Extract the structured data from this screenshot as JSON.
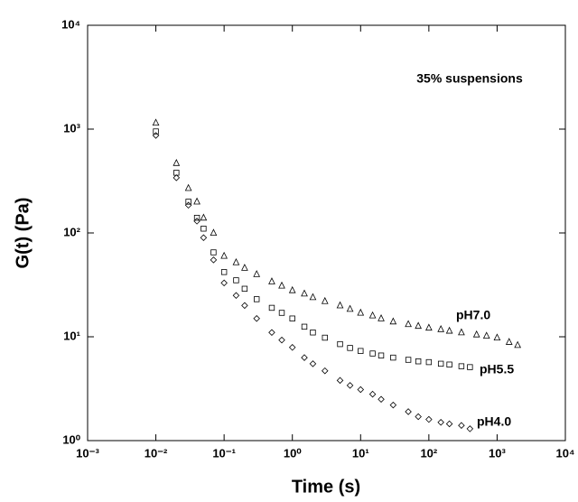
{
  "chart_data": {
    "type": "scatter",
    "x_label": "Time (s)",
    "y_label": "G(t) (Pa)",
    "annotation": "35% suspensions",
    "log_x": true,
    "log_y": true,
    "xlim": [
      0.001,
      10000
    ],
    "ylim": [
      1,
      10000
    ],
    "xticks": [
      {
        "value": 0.001,
        "label": "10⁻³"
      },
      {
        "value": 0.01,
        "label": "10⁻²"
      },
      {
        "value": 0.1,
        "label": "10⁻¹"
      },
      {
        "value": 1,
        "label": "10⁰"
      },
      {
        "value": 10,
        "label": "10¹"
      },
      {
        "value": 100,
        "label": "10²"
      },
      {
        "value": 1000,
        "label": "10³"
      },
      {
        "value": 10000,
        "label": "10⁴"
      }
    ],
    "yticks": [
      {
        "value": 1,
        "label": "10⁰"
      },
      {
        "value": 10,
        "label": "10¹"
      },
      {
        "value": 100,
        "label": "10²"
      },
      {
        "value": 1000,
        "label": "10³"
      },
      {
        "value": 10000,
        "label": "10⁴"
      }
    ],
    "series": [
      {
        "name": "pH7.0",
        "color": "#000000",
        "marker": "triangle",
        "x": [
          0.01,
          0.02,
          0.03,
          0.04,
          0.05,
          0.07,
          0.1,
          0.15,
          0.2,
          0.3,
          0.5,
          0.7,
          1,
          1.5,
          2,
          3,
          5,
          7,
          10,
          15,
          20,
          30,
          50,
          70,
          100,
          150,
          200,
          300,
          500,
          700,
          1000,
          1500,
          2000
        ],
        "values": [
          1150,
          470,
          270,
          200,
          140,
          100,
          60,
          52,
          46,
          40,
          34,
          31,
          28,
          26,
          24,
          22,
          20,
          18.5,
          17,
          16,
          15,
          14,
          13.2,
          12.7,
          12.2,
          11.8,
          11.4,
          11,
          10.5,
          10.2,
          9.8,
          8.9,
          8.3
        ]
      },
      {
        "name": "pH5.5",
        "color": "#000000",
        "marker": "square",
        "x": [
          0.01,
          0.02,
          0.03,
          0.04,
          0.05,
          0.07,
          0.1,
          0.15,
          0.2,
          0.3,
          0.5,
          0.7,
          1,
          1.5,
          2,
          3,
          5,
          7,
          10,
          15,
          20,
          30,
          50,
          70,
          100,
          150,
          200,
          300,
          400
        ],
        "values": [
          950,
          380,
          200,
          140,
          110,
          65,
          42,
          35,
          29,
          23,
          19,
          17,
          15,
          12.5,
          11,
          9.8,
          8.5,
          7.8,
          7.3,
          6.9,
          6.6,
          6.3,
          6,
          5.8,
          5.7,
          5.5,
          5.4,
          5.2,
          5.1
        ]
      },
      {
        "name": "pH4.0",
        "color": "#000000",
        "marker": "diamond",
        "x": [
          0.01,
          0.02,
          0.03,
          0.04,
          0.05,
          0.07,
          0.1,
          0.15,
          0.2,
          0.3,
          0.5,
          0.7,
          1,
          1.5,
          2,
          3,
          5,
          7,
          10,
          15,
          20,
          30,
          50,
          70,
          100,
          150,
          200,
          300,
          400
        ],
        "values": [
          870,
          340,
          185,
          130,
          90,
          55,
          33,
          25,
          20,
          15,
          11,
          9.3,
          7.9,
          6.3,
          5.5,
          4.7,
          3.8,
          3.4,
          3.1,
          2.8,
          2.5,
          2.2,
          1.9,
          1.7,
          1.6,
          1.5,
          1.45,
          1.4,
          1.3
        ]
      }
    ]
  }
}
